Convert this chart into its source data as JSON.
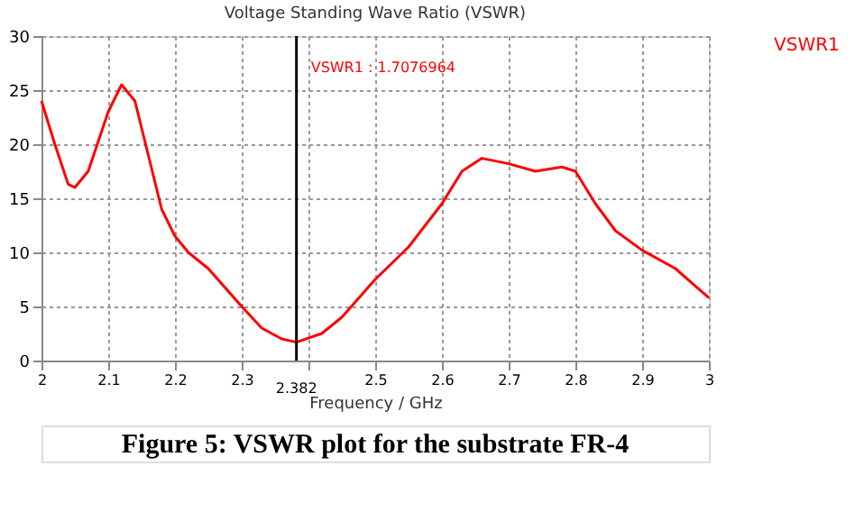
{
  "chart_data": {
    "type": "line",
    "title": "Voltage Standing Wave Ratio (VSWR)",
    "xlabel": "Frequency / GHz",
    "x": [
      2.0,
      2.02,
      2.04,
      2.05,
      2.07,
      2.1,
      2.12,
      2.14,
      2.16,
      2.18,
      2.2,
      2.22,
      2.25,
      2.3,
      2.33,
      2.36,
      2.382,
      2.42,
      2.45,
      2.5,
      2.55,
      2.6,
      2.63,
      2.66,
      2.7,
      2.74,
      2.78,
      2.8,
      2.83,
      2.86,
      2.9,
      2.95,
      3.0
    ],
    "series": [
      {
        "name": "VSWR1",
        "color": "#ff0000",
        "values": [
          24,
          20,
          16.3,
          16,
          17.5,
          23,
          25.5,
          24,
          19,
          14,
          11.5,
          10,
          8.5,
          5,
          3,
          2,
          1.7,
          2.5,
          4,
          7.5,
          10.5,
          14.5,
          17.5,
          18.7,
          18.2,
          17.5,
          17.9,
          17.5,
          14.5,
          12,
          10.2,
          8.5,
          5.8
        ]
      }
    ],
    "xlim": [
      2,
      3
    ],
    "xticks": [
      2,
      2.1,
      2.2,
      2.3,
      {
        "value": 2.4,
        "label": null
      },
      2.5,
      2.6,
      2.7,
      2.8,
      2.9,
      3
    ],
    "ylim": [
      0,
      30
    ],
    "yticks": [
      0,
      5,
      10,
      15,
      20,
      25,
      30
    ],
    "ref_lines": [
      {
        "axis": "x",
        "value": 2.382,
        "label": "2.382",
        "color": "#000000"
      }
    ],
    "annotations": [
      "VSWR1 : 1.7076964",
      "Figure 5: VSWR plot for the substrate FR-4"
    ],
    "grid": true,
    "legend": "right",
    "line_style": "solid",
    "marker": "none"
  }
}
